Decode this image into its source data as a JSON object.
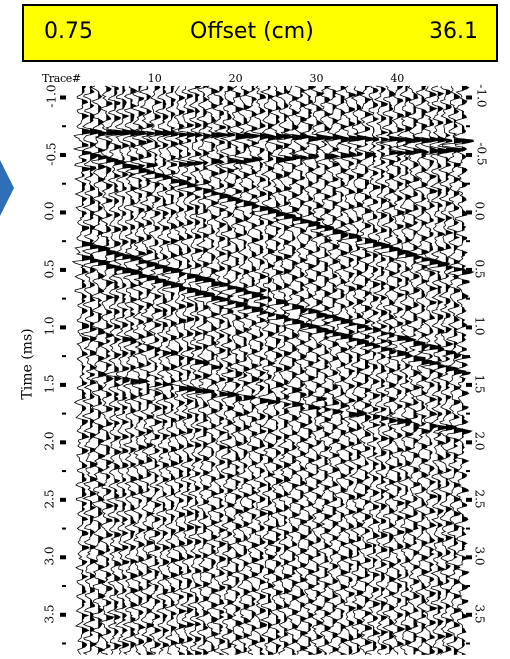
{
  "header": {
    "offset_min": "0.75",
    "offset_label": "Offset (cm)",
    "offset_max": "36.1",
    "background": "#ffff00"
  },
  "arrow_color": "#2e6fb7",
  "chart_data": {
    "type": "seismic-wiggle",
    "x_axis": {
      "label": "Trace#",
      "ticks": [
        10,
        20,
        30,
        40
      ],
      "range": [
        1,
        48
      ]
    },
    "y_axis": {
      "label": "Time (ms)",
      "ticks": [
        -1.0,
        -0.5,
        0.0,
        0.5,
        1.0,
        1.5,
        2.0,
        2.5,
        3.0,
        3.5
      ],
      "tick_labels": [
        "-1.0",
        "-0.5",
        "0.0",
        "0.5",
        "1.0",
        "1.5",
        "2.0",
        "2.5",
        "3.0",
        "3.5"
      ],
      "range": [
        -1.1,
        3.85
      ],
      "inverted": true
    },
    "traces": 48,
    "events": [
      {
        "t_first": -0.7,
        "t_last": -0.62,
        "amp": 0.9
      },
      {
        "t_first": -0.52,
        "t_last": 0.52,
        "amp": 1.0
      },
      {
        "t_first": -0.38,
        "t_last": -0.55,
        "amp": 0.7
      },
      {
        "t_first": 0.28,
        "t_last": 1.26,
        "amp": 0.9
      },
      {
        "t_first": 0.4,
        "t_last": 1.4,
        "amp": 1.0
      },
      {
        "t_first": 1.4,
        "t_last": 1.9,
        "amp": 0.6
      },
      {
        "t_first": 1.0,
        "t_last": 2.0,
        "amp": 0.4
      }
    ]
  }
}
